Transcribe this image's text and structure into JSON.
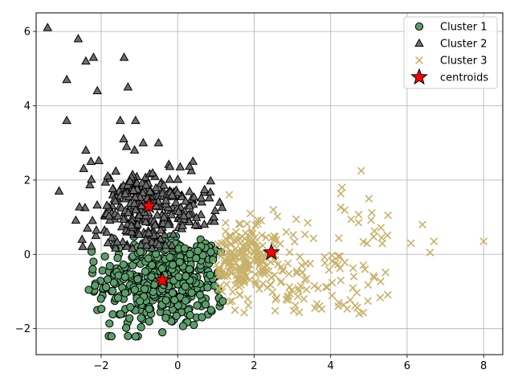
{
  "chart_data": {
    "type": "scatter",
    "title": "",
    "xlabel": "",
    "ylabel": "",
    "xlim": [
      -3.7,
      8.5
    ],
    "ylim": [
      -2.7,
      6.5
    ],
    "xticks": [
      -2,
      0,
      2,
      4,
      6,
      8
    ],
    "yticks": [
      -2,
      0,
      2,
      4,
      6
    ],
    "xtick_labels": [
      "−2",
      "0",
      "2",
      "4",
      "6",
      "8"
    ],
    "ytick_labels": [
      "−2",
      "0",
      "2",
      "4",
      "6"
    ],
    "grid": true,
    "legend_position": "top-right",
    "series": [
      {
        "name": "Cluster 1",
        "marker": "circle",
        "color": "#5a9e6a",
        "count": 430,
        "sample_points": [
          [
            -2.2,
            -0.2
          ],
          [
            -1.0,
            -1.3
          ],
          [
            -0.5,
            -1.0
          ],
          [
            0.3,
            0.1
          ],
          [
            0.6,
            0.4
          ],
          [
            -1.8,
            -2.2
          ],
          [
            -1.3,
            -2.2
          ],
          [
            -0.4,
            -2.1
          ],
          [
            1.1,
            -1.4
          ],
          [
            -2.1,
            -1.5
          ],
          [
            0.5,
            -1.7
          ],
          [
            -0.9,
            0.3
          ]
        ]
      },
      {
        "name": "Cluster 2",
        "marker": "triangle",
        "color": "#6e6e6e",
        "count": 320,
        "sample_points": [
          [
            -3.4,
            6.1
          ],
          [
            -2.6,
            5.8
          ],
          [
            -2.4,
            5.2
          ],
          [
            -2.2,
            5.3
          ],
          [
            -1.4,
            5.3
          ],
          [
            -2.9,
            4.7
          ],
          [
            -2.1,
            4.4
          ],
          [
            -1.3,
            4.5
          ],
          [
            -2.9,
            3.6
          ],
          [
            -1.1,
            3.6
          ],
          [
            -1.5,
            3.6
          ],
          [
            -3.1,
            1.7
          ],
          [
            -2.4,
            2.8
          ],
          [
            -0.9,
            3.0
          ],
          [
            -0.5,
            3.0
          ],
          [
            0.4,
            2.5
          ],
          [
            -2.5,
            0.4
          ],
          [
            1.1,
            1.4
          ]
        ]
      },
      {
        "name": "Cluster 3",
        "marker": "x",
        "color": "#c8b26a",
        "count": 320,
        "sample_points": [
          [
            8.0,
            0.35
          ],
          [
            6.6,
            0.05
          ],
          [
            6.7,
            0.35
          ],
          [
            6.4,
            0.8
          ],
          [
            6.1,
            0.3
          ],
          [
            5.5,
            1.05
          ],
          [
            5.0,
            1.5
          ],
          [
            4.8,
            2.25
          ],
          [
            4.3,
            1.8
          ],
          [
            3.4,
            0.85
          ],
          [
            4.2,
            -1.4
          ],
          [
            3.3,
            -1.2
          ],
          [
            1.5,
            -1.5
          ],
          [
            2.5,
            1.2
          ],
          [
            1.9,
            1.1
          ]
        ]
      }
    ],
    "centroids": {
      "name": "centroids",
      "marker": "star",
      "color": "#ff0000",
      "points": [
        [
          -0.75,
          1.3
        ],
        [
          -0.4,
          -0.7
        ],
        [
          2.45,
          0.05
        ]
      ]
    }
  }
}
